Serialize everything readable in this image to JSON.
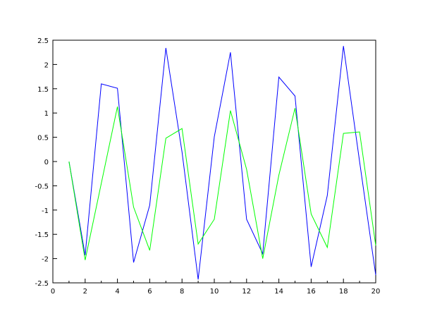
{
  "chart_data": {
    "type": "line",
    "title": "",
    "xlabel": "",
    "ylabel": "",
    "xlim": [
      0,
      20
    ],
    "ylim": [
      -2.5,
      2.5
    ],
    "grid": false,
    "x_ticks": [
      "0",
      "2",
      "4",
      "6",
      "8",
      "10",
      "12",
      "14",
      "16",
      "18",
      "20"
    ],
    "y_ticks": [
      "2.5",
      "2",
      "1.5",
      "1",
      "0.5",
      "0",
      "-0.5",
      "-1",
      "-1.5",
      "-2",
      "-2.5"
    ],
    "x": [
      1,
      2,
      3,
      4,
      5,
      6,
      7,
      8,
      9,
      10,
      11,
      12,
      13,
      14,
      15,
      16,
      17,
      18,
      19,
      20
    ],
    "series": [
      {
        "color": "#0000ff",
        "values": [
          0,
          -1.93,
          1.6,
          1.51,
          -2.08,
          -0.9,
          2.34,
          0.2,
          -2.43,
          0.51,
          2.25,
          -1.19,
          -1.9,
          1.74,
          1.35,
          -2.17,
          -0.7,
          2.38,
          0.0,
          -2.34
        ]
      },
      {
        "color": "#00ff00",
        "values": [
          0,
          -2.03,
          -0.45,
          1.13,
          -0.94,
          -1.83,
          0.48,
          0.68,
          -1.7,
          -1.19,
          1.05,
          -0.16,
          -2.0,
          -0.28,
          1.1,
          -1.08,
          -1.77,
          0.58,
          0.61,
          -1.73
        ]
      }
    ]
  }
}
